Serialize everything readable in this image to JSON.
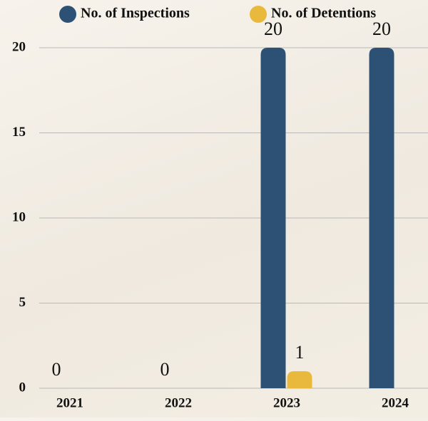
{
  "chart_data": {
    "type": "bar",
    "categories": [
      "2021",
      "2022",
      "2023",
      "2024"
    ],
    "series": [
      {
        "name": "No. of Inspections",
        "color": "#2d5175",
        "values": [
          0,
          0,
          20,
          20
        ]
      },
      {
        "name": "No. of Detentions",
        "color": "#e8b93c",
        "values": [
          null,
          null,
          1,
          null
        ]
      }
    ],
    "ylim": [
      0,
      20
    ],
    "yticks": [
      0,
      5,
      10,
      15,
      20
    ],
    "grid": true
  }
}
